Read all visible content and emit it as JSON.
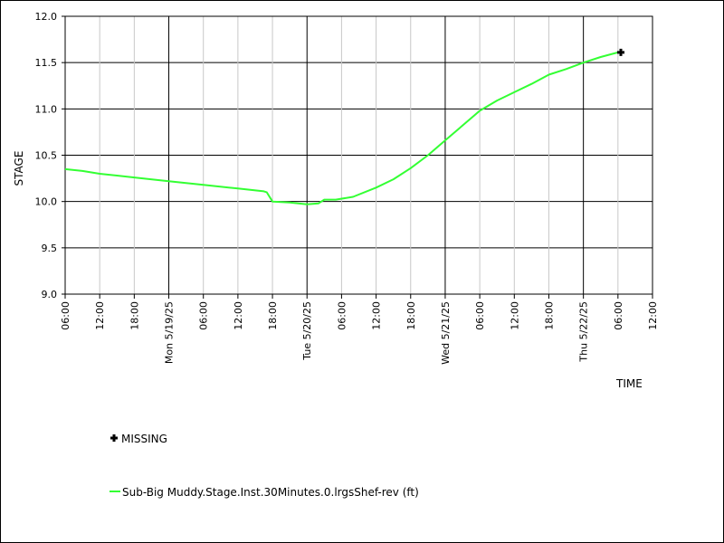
{
  "chart_data": {
    "type": "line",
    "title": "",
    "xlabel": "TIME",
    "ylabel": "STAGE",
    "ylim": [
      9.0,
      12.0
    ],
    "y_ticks": [
      "9.0",
      "9.5",
      "10.0",
      "10.5",
      "11.0",
      "11.5",
      "12.0"
    ],
    "x_ticks": [
      {
        "t": "2025-05-18T06:00",
        "label": "06:00",
        "major": false
      },
      {
        "t": "2025-05-18T12:00",
        "label": "12:00",
        "major": false
      },
      {
        "t": "2025-05-18T18:00",
        "label": "18:00",
        "major": false
      },
      {
        "t": "2025-05-19T00:00",
        "label": "Mon 5/19/25",
        "major": true
      },
      {
        "t": "2025-05-19T06:00",
        "label": "06:00",
        "major": false
      },
      {
        "t": "2025-05-19T12:00",
        "label": "12:00",
        "major": false
      },
      {
        "t": "2025-05-19T18:00",
        "label": "18:00",
        "major": false
      },
      {
        "t": "2025-05-20T00:00",
        "label": "Tue 5/20/25",
        "major": true
      },
      {
        "t": "2025-05-20T06:00",
        "label": "06:00",
        "major": false
      },
      {
        "t": "2025-05-20T12:00",
        "label": "12:00",
        "major": false
      },
      {
        "t": "2025-05-20T18:00",
        "label": "18:00",
        "major": false
      },
      {
        "t": "2025-05-21T00:00",
        "label": "Wed 5/21/25",
        "major": true
      },
      {
        "t": "2025-05-21T06:00",
        "label": "06:00",
        "major": false
      },
      {
        "t": "2025-05-21T12:00",
        "label": "12:00",
        "major": false
      },
      {
        "t": "2025-05-21T18:00",
        "label": "18:00",
        "major": false
      },
      {
        "t": "2025-05-22T00:00",
        "label": "Thu 5/22/25",
        "major": true
      },
      {
        "t": "2025-05-22T06:00",
        "label": "06:00",
        "major": false
      },
      {
        "t": "2025-05-22T12:00",
        "label": "12:00",
        "major": false
      }
    ],
    "grid": true,
    "series": [
      {
        "name": "Sub-Big Muddy.Stage.Inst.30Minutes.0.lrgsShef-rev (ft)",
        "color": "#33ff33",
        "points": [
          [
            "2025-05-18T06:00",
            10.35
          ],
          [
            "2025-05-18T09:00",
            10.33
          ],
          [
            "2025-05-18T12:00",
            10.3
          ],
          [
            "2025-05-18T18:00",
            10.26
          ],
          [
            "2025-05-19T00:00",
            10.22
          ],
          [
            "2025-05-19T06:00",
            10.18
          ],
          [
            "2025-05-19T12:00",
            10.14
          ],
          [
            "2025-05-19T16:30",
            10.11
          ],
          [
            "2025-05-19T17:00",
            10.1
          ],
          [
            "2025-05-19T18:00",
            10.0
          ],
          [
            "2025-05-19T21:00",
            9.99
          ],
          [
            "2025-05-20T00:00",
            9.97
          ],
          [
            "2025-05-20T02:00",
            9.98
          ],
          [
            "2025-05-20T03:00",
            10.02
          ],
          [
            "2025-05-20T05:00",
            10.02
          ],
          [
            "2025-05-20T08:00",
            10.05
          ],
          [
            "2025-05-20T12:00",
            10.15
          ],
          [
            "2025-05-20T15:00",
            10.24
          ],
          [
            "2025-05-20T18:00",
            10.36
          ],
          [
            "2025-05-20T21:00",
            10.5
          ],
          [
            "2025-05-21T00:00",
            10.66
          ],
          [
            "2025-05-21T03:00",
            10.82
          ],
          [
            "2025-05-21T06:00",
            10.98
          ],
          [
            "2025-05-21T09:00",
            11.09
          ],
          [
            "2025-05-21T12:00",
            11.18
          ],
          [
            "2025-05-21T15:00",
            11.27
          ],
          [
            "2025-05-21T18:00",
            11.37
          ],
          [
            "2025-05-21T21:00",
            11.43
          ],
          [
            "2025-05-22T00:00",
            11.5
          ],
          [
            "2025-05-22T03:00",
            11.56
          ],
          [
            "2025-05-22T06:00",
            11.61
          ]
        ]
      }
    ],
    "missing": {
      "label": "MISSING",
      "points": [
        [
          "2025-05-22T06:30",
          11.61
        ]
      ]
    },
    "legend_placement": "bottom-left"
  }
}
